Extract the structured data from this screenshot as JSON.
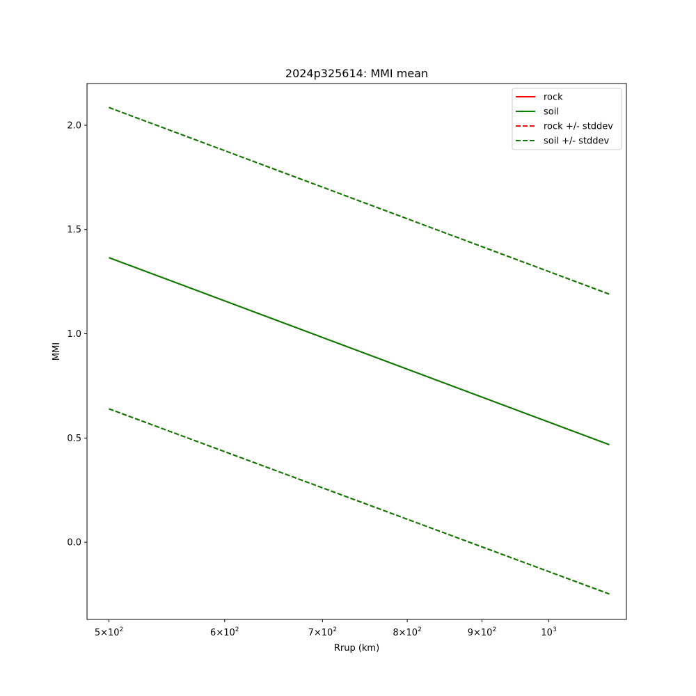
{
  "chart_data": {
    "type": "line",
    "title": "2024p325614: MMI mean",
    "xlabel": "Rrup (km)",
    "ylabel": "MMI",
    "xscale": "log",
    "xlim": [
      483,
      1130
    ],
    "ylim": [
      -0.37,
      2.2
    ],
    "grid": false,
    "legend_position": "top-right",
    "x_ticks": [
      {
        "value": 500,
        "base": "5×10",
        "exp": "2"
      },
      {
        "value": 600,
        "base": "6×10",
        "exp": "2"
      },
      {
        "value": 700,
        "base": "7×10",
        "exp": "2"
      },
      {
        "value": 800,
        "base": "8×10",
        "exp": "2"
      },
      {
        "value": 900,
        "base": "9×10",
        "exp": "2"
      },
      {
        "value": 1000,
        "base": "10",
        "exp": "3"
      }
    ],
    "y_ticks": [
      {
        "value": 0.0,
        "label": "0.0"
      },
      {
        "value": 0.5,
        "label": "0.5"
      },
      {
        "value": 1.0,
        "label": "1.0"
      },
      {
        "value": 1.5,
        "label": "1.5"
      },
      {
        "value": 2.0,
        "label": "2.0"
      }
    ],
    "x": [
      500,
      1100
    ],
    "series": [
      {
        "name": "rock",
        "style": "solid",
        "color": "#ff0000",
        "values": [
          1.365,
          0.468
        ]
      },
      {
        "name": "soil",
        "style": "solid",
        "color": "#008000",
        "values": [
          1.365,
          0.468
        ]
      },
      {
        "name": "rock +/- stddev",
        "style": "dashed",
        "color": "#ff0000",
        "values": [
          2.085,
          1.19
        ],
        "lower": [
          0.64,
          -0.248
        ]
      },
      {
        "name": "soil +/- stddev",
        "style": "dashed",
        "color": "#008000",
        "values": [
          2.085,
          1.19
        ],
        "lower": [
          0.64,
          -0.248
        ]
      }
    ]
  }
}
